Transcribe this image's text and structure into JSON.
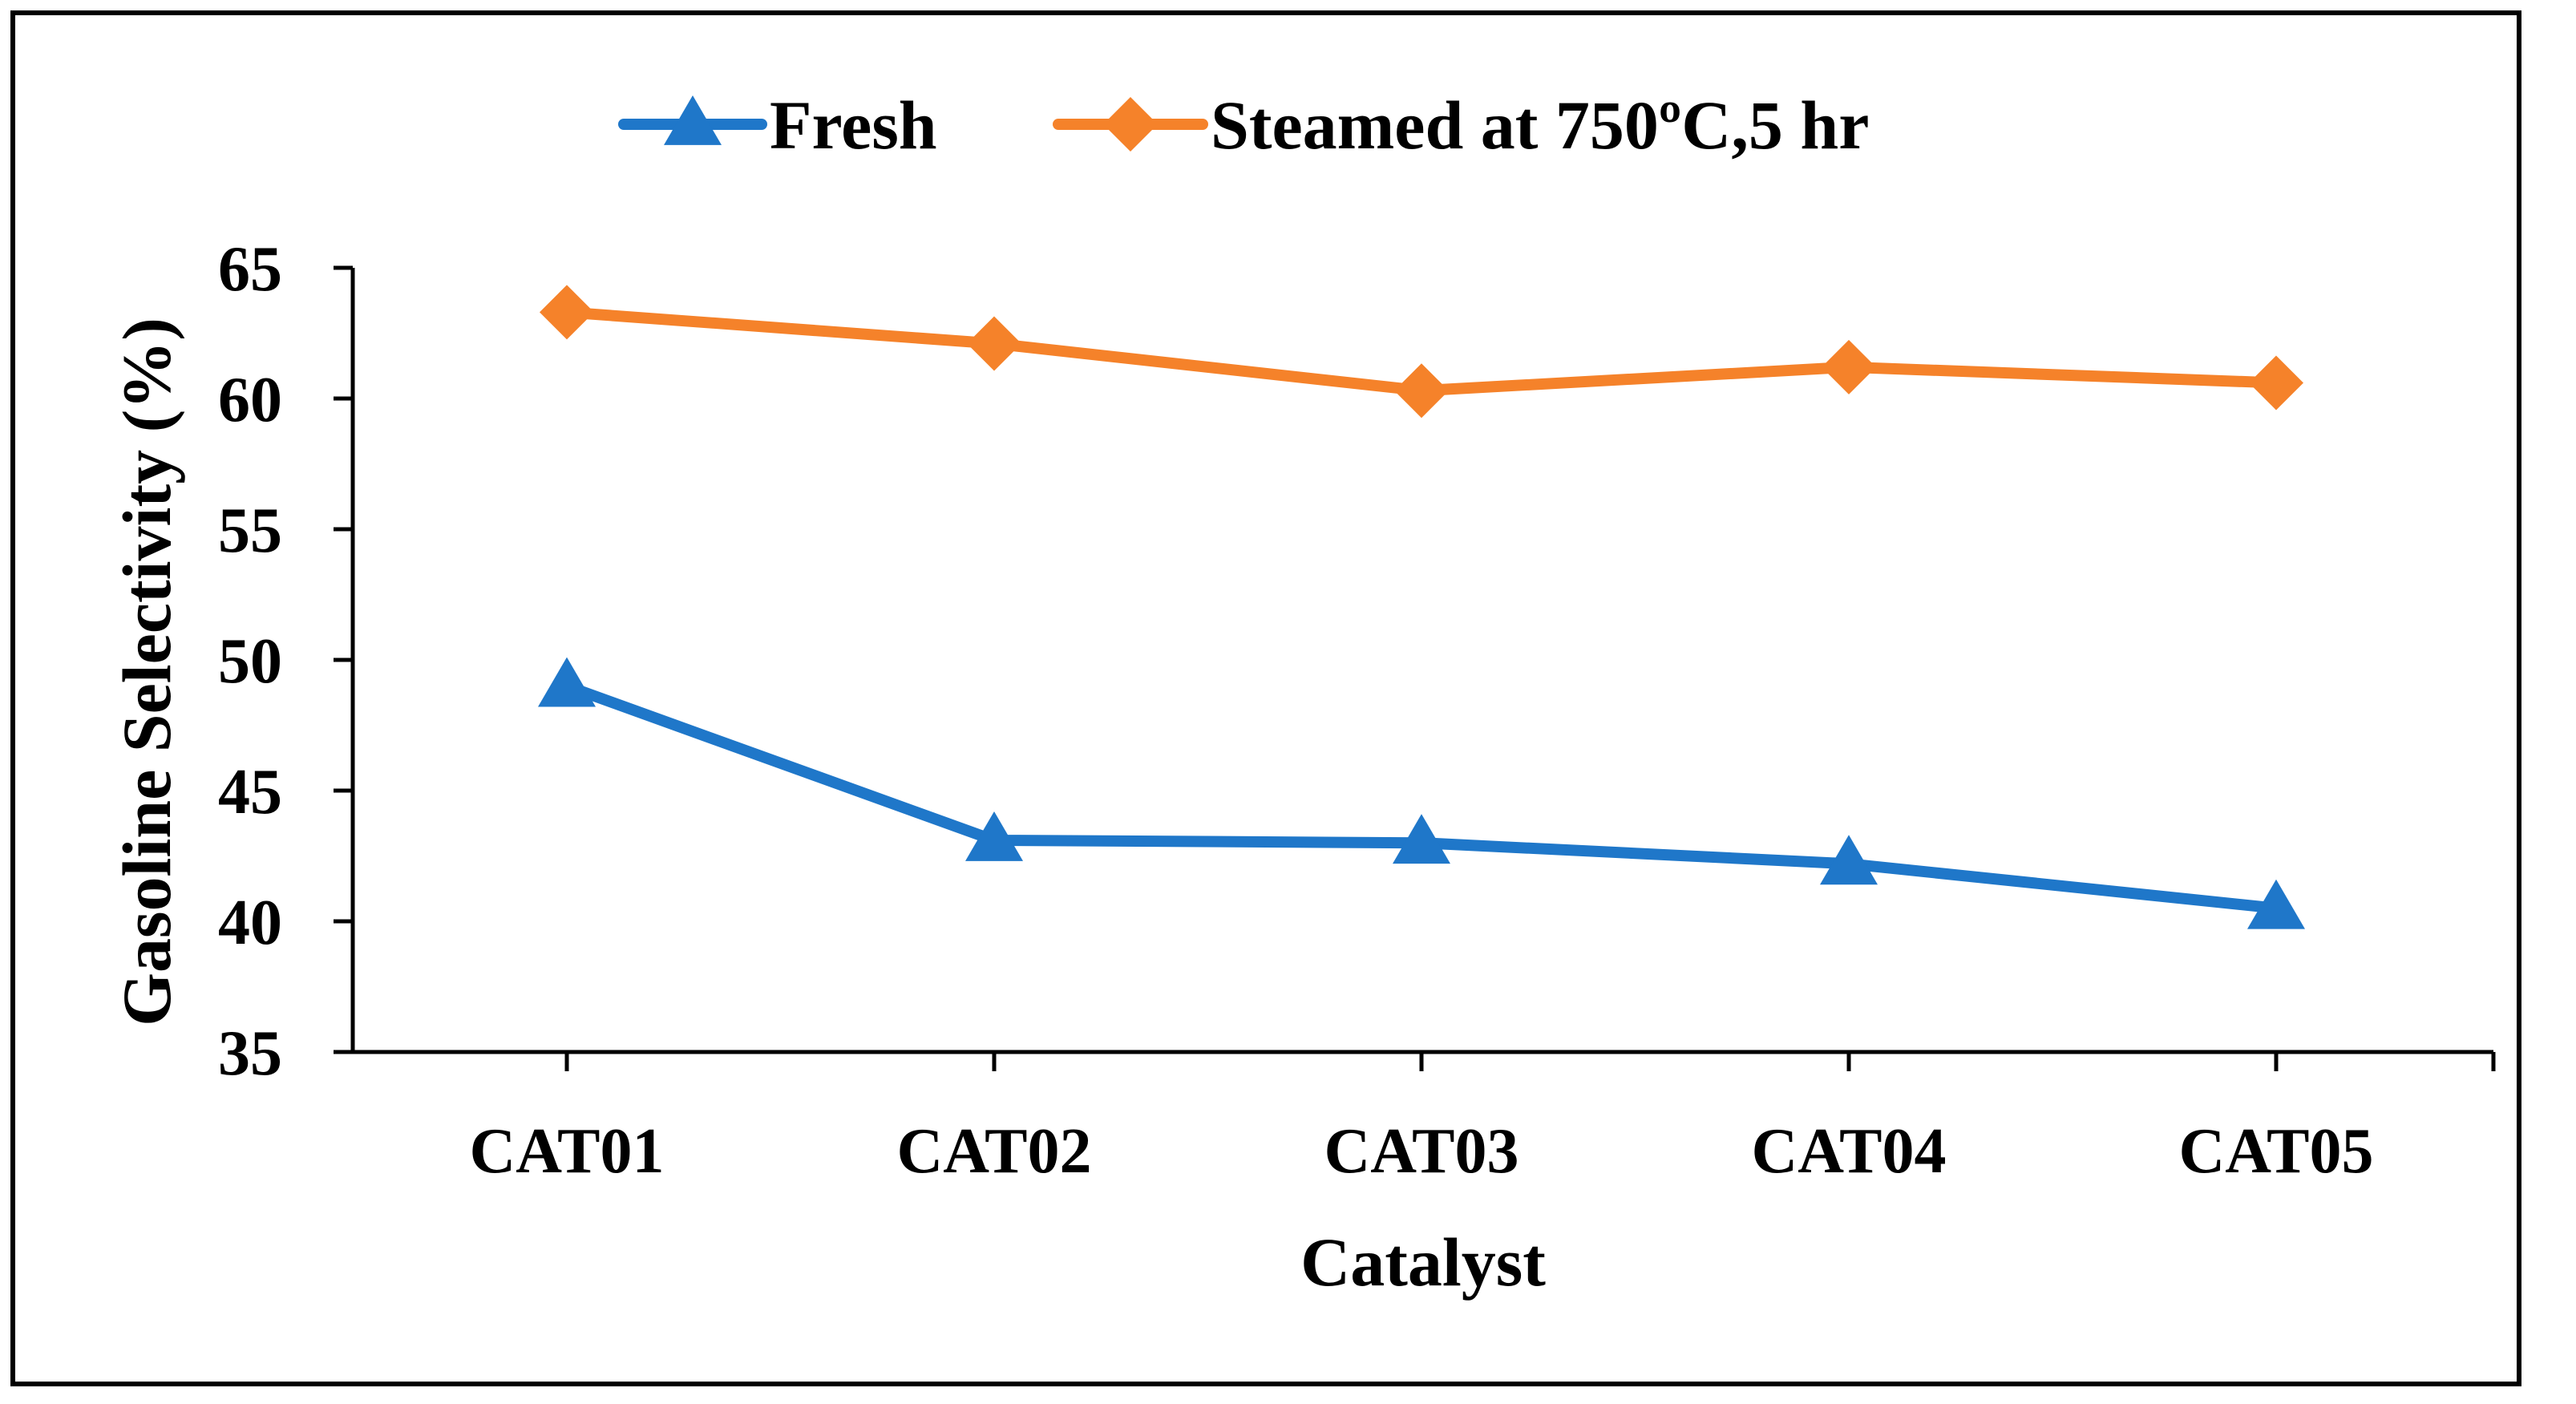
{
  "chart_data": {
    "type": "line",
    "title": "",
    "xlabel": "Catalyst",
    "ylabel": "Gasoline Selectivity (%)",
    "categories": [
      "CAT01",
      "CAT02",
      "CAT03",
      "CAT04",
      "CAT05"
    ],
    "ylim": [
      35,
      65
    ],
    "yticks": [
      35,
      40,
      45,
      50,
      55,
      60,
      65
    ],
    "grid": false,
    "legend_position": "top-center",
    "series": [
      {
        "name": "Fresh",
        "marker": "triangle",
        "color": "#1F77C9",
        "values": [
          49.0,
          43.1,
          43.0,
          42.2,
          40.5
        ]
      },
      {
        "name": "Steamed at 750ºC,5 hr",
        "marker": "diamond",
        "color": "#F5822A",
        "values": [
          63.3,
          62.1,
          60.3,
          61.2,
          60.6
        ]
      }
    ]
  }
}
